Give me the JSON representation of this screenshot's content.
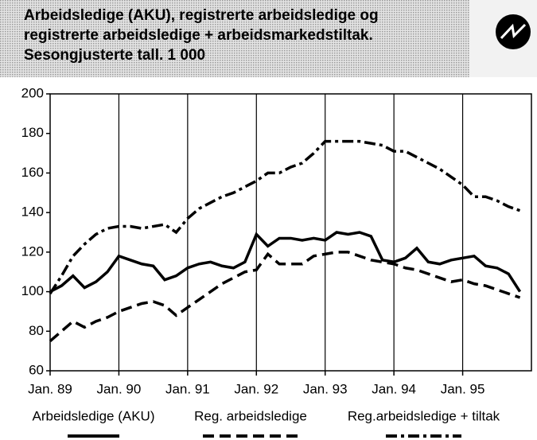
{
  "chart_data": {
    "type": "line",
    "title_lines": [
      "Arbeidsledige (AKU), registrerte arbeidsledige og",
      "registrerte arbeidsledige + arbeidsmarkedstiltak.",
      "Sesongjusterte tall. 1 000"
    ],
    "categories": [
      "Jan. 89",
      null,
      null,
      null,
      null,
      null,
      "Jan. 90",
      null,
      null,
      null,
      null,
      null,
      "Jan. 91",
      null,
      null,
      null,
      null,
      null,
      "Jan. 92",
      null,
      null,
      null,
      null,
      null,
      "Jan. 93",
      null,
      null,
      null,
      null,
      null,
      "Jan. 94",
      null,
      null,
      null,
      null,
      null,
      "Jan. 95",
      null,
      null,
      null,
      null,
      null
    ],
    "series": [
      {
        "name": "Arbeidsledige (AKU)",
        "color": "#000000",
        "line_style": "solid",
        "values": [
          100,
          103,
          108,
          102,
          105,
          110,
          118,
          116,
          114,
          113,
          106,
          108,
          112,
          114,
          115,
          113,
          112,
          115,
          129,
          123,
          127,
          127,
          126,
          127,
          126,
          130,
          129,
          130,
          128,
          116,
          115,
          117,
          122,
          115,
          114,
          116,
          117,
          118,
          113,
          112,
          109,
          100
        ]
      },
      {
        "name": "Reg. arbeidsledige",
        "color": "#000000",
        "line_style": "dashed",
        "values": [
          75,
          80,
          85,
          82,
          85,
          87,
          90,
          92,
          94,
          95,
          93,
          88,
          92,
          96,
          100,
          104,
          107,
          110,
          111,
          119,
          114,
          114,
          114,
          118,
          119,
          120,
          120,
          118,
          116,
          115,
          114,
          112,
          111,
          109,
          107,
          105,
          106,
          104,
          103,
          101,
          99,
          97
        ]
      },
      {
        "name": "Reg.arbeidsledige + tiltak",
        "color": "#000000",
        "line_style": "dashdot",
        "values": [
          99,
          108,
          118,
          124,
          129,
          132,
          133,
          133,
          132,
          133,
          134,
          130,
          137,
          142,
          145,
          148,
          150,
          153,
          156,
          160,
          160,
          163,
          165,
          170,
          176,
          176,
          176,
          176,
          175,
          174,
          171,
          171,
          168,
          165,
          162,
          158,
          154,
          148,
          148,
          146,
          143,
          141
        ]
      }
    ],
    "ylim": [
      60,
      200
    ],
    "yticks": [
      60,
      80,
      100,
      120,
      140,
      160,
      180,
      200
    ],
    "grid": true
  }
}
